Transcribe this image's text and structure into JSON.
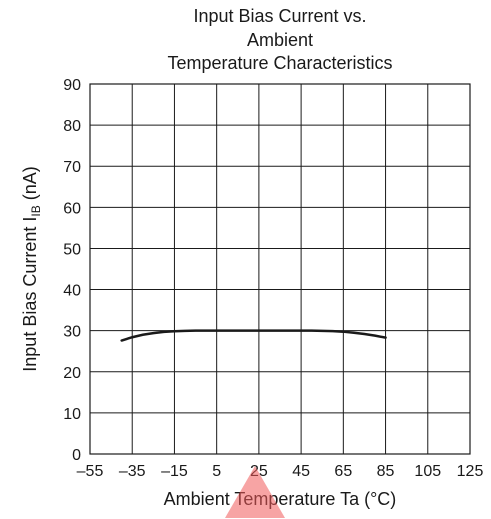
{
  "chart_data": {
    "type": "line",
    "title": [
      "Input Bias Current vs.",
      "Ambient",
      "Temperature Characteristics"
    ],
    "xlabel": "Ambient Temperature Ta (°C)",
    "ylabel": {
      "main": "Input Bias Current I",
      "sub": "IB",
      "unit": " (nA)"
    },
    "xlim": [
      -55,
      125
    ],
    "ylim": [
      0,
      90
    ],
    "x_ticks": [
      -55,
      -35,
      -15,
      5,
      25,
      45,
      65,
      85,
      105,
      125
    ],
    "x_tick_labels": [
      "–55",
      "–35",
      "–15",
      "5",
      "25",
      "45",
      "65",
      "85",
      "105",
      "125"
    ],
    "y_ticks": [
      0,
      10,
      20,
      30,
      40,
      50,
      60,
      70,
      80,
      90
    ],
    "y_tick_labels": [
      "0",
      "10",
      "20",
      "30",
      "40",
      "50",
      "60",
      "70",
      "80",
      "90"
    ],
    "grid": true,
    "series": [
      {
        "color": "#1a1a1a",
        "x": [
          -40,
          -35,
          -30,
          -25,
          -20,
          -15,
          -10,
          -5,
          0,
          5,
          10,
          15,
          20,
          25,
          30,
          35,
          40,
          45,
          50,
          55,
          60,
          65,
          70,
          75,
          80,
          85
        ],
        "y": [
          27.6,
          28.4,
          29.0,
          29.4,
          29.7,
          29.85,
          29.95,
          30.0,
          30.0,
          30.0,
          30.0,
          30.0,
          30.0,
          30.0,
          30.0,
          30.0,
          30.0,
          30.0,
          30.0,
          29.95,
          29.9,
          29.75,
          29.5,
          29.2,
          28.8,
          28.3
        ]
      }
    ]
  },
  "colors": {
    "grid": "#1a1a1a",
    "line": "#1a1a1a",
    "watermark": "#f05a5a"
  }
}
